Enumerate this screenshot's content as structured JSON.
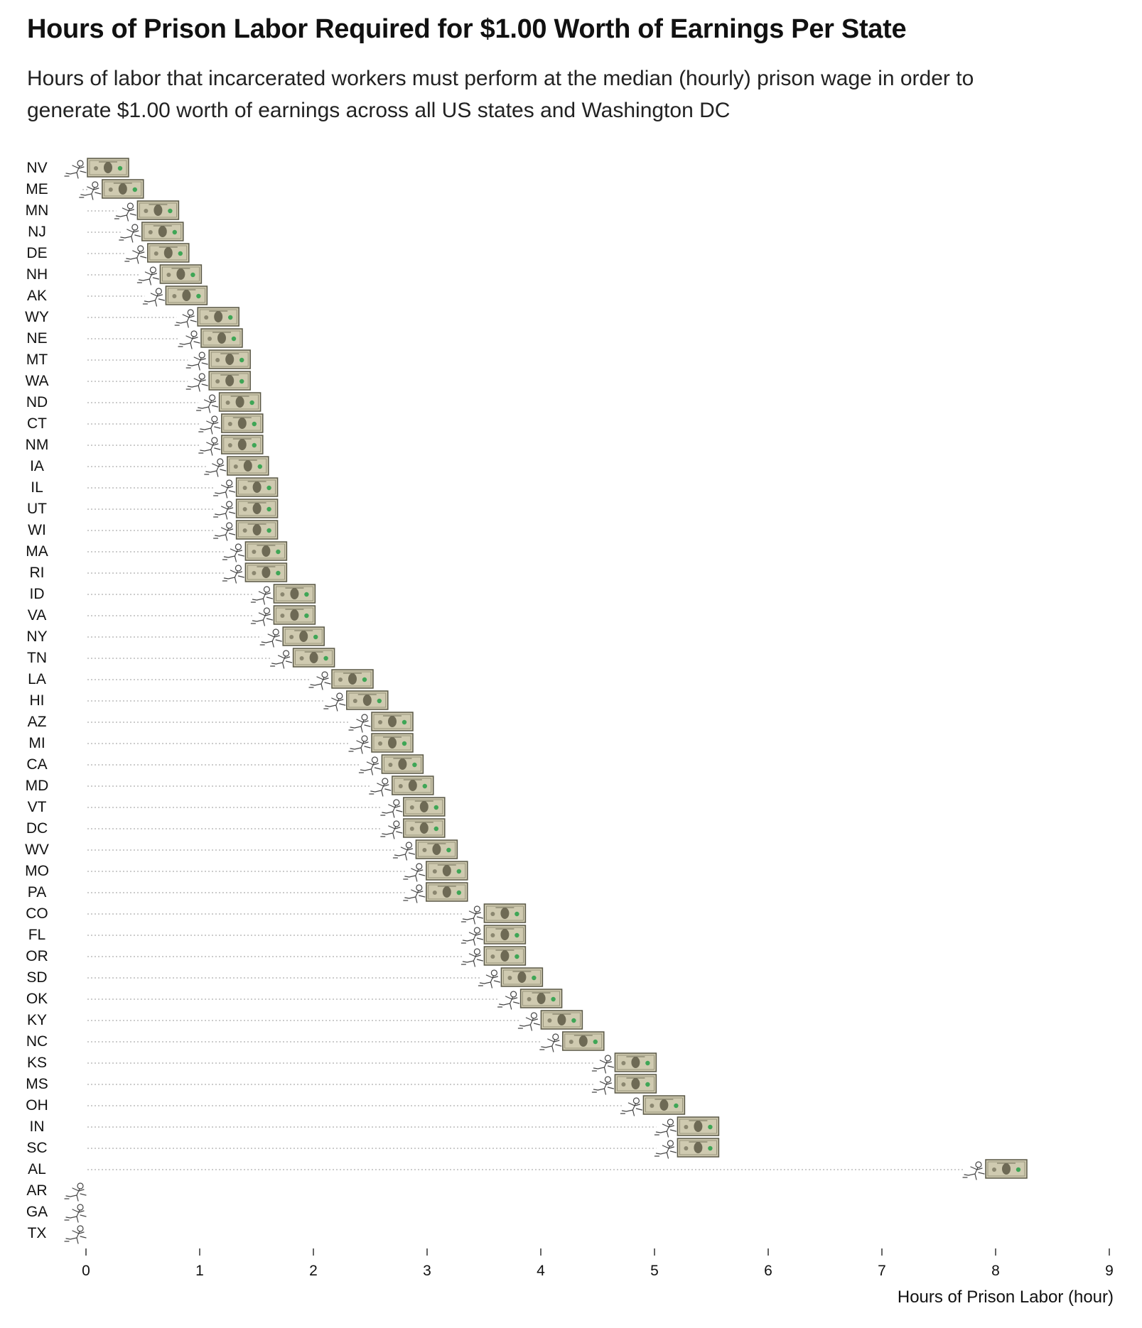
{
  "header": {
    "title": "Hours of Prison Labor Required for $1.00 Worth of Earnings Per State",
    "subtitle": "Hours of labor that incarcerated workers must perform at the median (hourly) prison wage in order to generate $1.00 worth of earnings across all US states and Washington DC"
  },
  "chart_data": {
    "type": "bar",
    "orientation": "horizontal",
    "title": "Hours of Prison Labor Required for $1.00 Worth of Earnings Per State",
    "subtitle": "Hours of labor that incarcerated workers must perform at the median (hourly) prison wage in order to generate $1.00 worth of earnings across all US states and Washington DC",
    "xlabel": "Hours of Prison Labor (hour)",
    "ylabel": "",
    "xlim": [
      0,
      9
    ],
    "xticks": [
      0,
      1,
      2,
      3,
      4,
      5,
      6,
      7,
      8,
      9
    ],
    "grid": false,
    "mark_style": "dotted leader line ending in a running-figure icon next to a dollar bill icon",
    "colors": {
      "leader": "#bbbbbb",
      "bill": "#cfcab0",
      "bill_border": "#5a5847",
      "seal": "#3fa656",
      "figure": "#444444"
    },
    "categories": [
      "NV",
      "ME",
      "MN",
      "NJ",
      "DE",
      "NH",
      "AK",
      "WY",
      "NE",
      "MT",
      "WA",
      "ND",
      "CT",
      "NM",
      "IA",
      "IL",
      "UT",
      "WI",
      "MA",
      "RI",
      "ID",
      "VA",
      "NY",
      "TN",
      "LA",
      "HI",
      "AZ",
      "MI",
      "CA",
      "MD",
      "VT",
      "DC",
      "WV",
      "MO",
      "PA",
      "CO",
      "FL",
      "OR",
      "SD",
      "OK",
      "KY",
      "NC",
      "KS",
      "MS",
      "OH",
      "IN",
      "SC",
      "AL",
      "AR",
      "GA",
      "TX"
    ],
    "values": [
      0.0,
      0.13,
      0.44,
      0.48,
      0.53,
      0.64,
      0.69,
      0.97,
      1.0,
      1.07,
      1.07,
      1.16,
      1.18,
      1.18,
      1.23,
      1.31,
      1.31,
      1.31,
      1.39,
      1.39,
      1.64,
      1.64,
      1.72,
      1.81,
      2.15,
      2.28,
      2.5,
      2.5,
      2.59,
      2.68,
      2.78,
      2.78,
      2.89,
      2.98,
      2.98,
      3.49,
      3.49,
      3.49,
      3.64,
      3.81,
      3.99,
      4.18,
      4.64,
      4.64,
      4.89,
      5.19,
      5.19,
      7.9,
      0,
      0,
      0
    ]
  }
}
